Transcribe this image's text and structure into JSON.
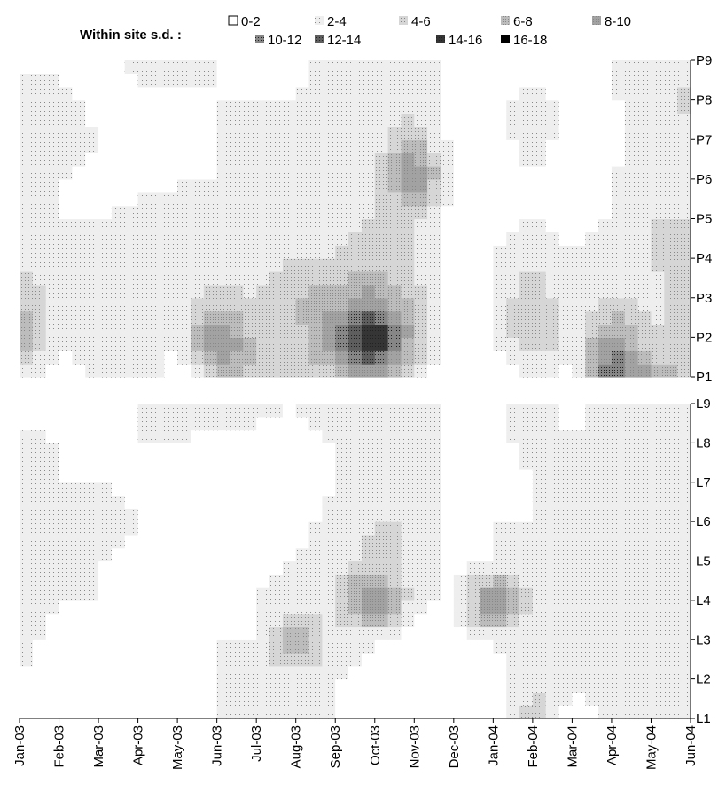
{
  "chart_data": {
    "type": "heatmap",
    "legend": {
      "title": "Within site s.d. :",
      "entries": [
        {
          "label": "0-2",
          "color": "#ffffff"
        },
        {
          "label": "2-4",
          "color": "#eeeeee"
        },
        {
          "label": "4-6",
          "color": "#d6d6d6"
        },
        {
          "label": "6-8",
          "color": "#bcbcbc"
        },
        {
          "label": "8-10",
          "color": "#a2a2a2"
        },
        {
          "label": "10-12",
          "color": "#868686"
        },
        {
          "label": "12-14",
          "color": "#5e5e5e"
        },
        {
          "label": "14-16",
          "color": "#353535"
        },
        {
          "label": "16-18",
          "color": "#000000"
        }
      ]
    },
    "x": [
      "Jan-03",
      "Feb-03",
      "Mar-03",
      "Apr-03",
      "May-03",
      "Jun-03",
      "Jul-03",
      "Aug-03",
      "Sep-03",
      "Oct-03",
      "Nov-03",
      "Dec-03",
      "Jan-04",
      "Feb-04",
      "Mar-04",
      "Apr-04",
      "May-04",
      "Jun-04"
    ],
    "panels": [
      {
        "name": "P",
        "y": [
          "P1",
          "P2",
          "P3",
          "P4",
          "P5",
          "P6",
          "P7",
          "P8",
          "P9"
        ],
        "z": [
          [
            3,
            1,
            2,
            4,
            1,
            5,
            6,
            4,
            5,
            9,
            3,
            0,
            1,
            2,
            1,
            13,
            8,
            5
          ],
          [
            8,
            2,
            4,
            4,
            2,
            12,
            5,
            5,
            10,
            17,
            7,
            1,
            2,
            6,
            3,
            9,
            4,
            6
          ],
          [
            6,
            3,
            3,
            3,
            3,
            5,
            4,
            6,
            7,
            9,
            5,
            1,
            2,
            6,
            2,
            4,
            3,
            5
          ],
          [
            4,
            2,
            3,
            3,
            2,
            3,
            3,
            4,
            4,
            5,
            4,
            1,
            2,
            3,
            2,
            3,
            4,
            5
          ],
          [
            2,
            2,
            2,
            3,
            2,
            3,
            4,
            3,
            3,
            4,
            4,
            1,
            1,
            2,
            1,
            2,
            4,
            4
          ],
          [
            2,
            2,
            1,
            1,
            2,
            2,
            2,
            2,
            3,
            3,
            12,
            1,
            1,
            2,
            1,
            2,
            4,
            3
          ],
          [
            2,
            3,
            2,
            1,
            1,
            2,
            2,
            2,
            3,
            3,
            6,
            1,
            1,
            3,
            1,
            1,
            3,
            3
          ],
          [
            3,
            3,
            1,
            1,
            1,
            2,
            2,
            2,
            3,
            3,
            3,
            1,
            1,
            3,
            1,
            2,
            2,
            5
          ],
          [
            1,
            1,
            1,
            3,
            3,
            2,
            1,
            1,
            3,
            3,
            3,
            1,
            1,
            1,
            1,
            2,
            2,
            3
          ]
        ]
      },
      {
        "name": "L",
        "y": [
          "L1",
          "L2",
          "L3",
          "L4",
          "L5",
          "L6",
          "L7",
          "L8",
          "L9"
        ],
        "z": [
          [
            2,
            1,
            2,
            1,
            1,
            2,
            3,
            4,
            2,
            1,
            1,
            1,
            1,
            6,
            1,
            2,
            2,
            2
          ],
          [
            2,
            1,
            1,
            1,
            1,
            2,
            3,
            3,
            2,
            1,
            1,
            1,
            1,
            3,
            2,
            4,
            2,
            2
          ],
          [
            3,
            1,
            1,
            1,
            1,
            2,
            2,
            8,
            3,
            2,
            1,
            1,
            2,
            3,
            2,
            3,
            2,
            2
          ],
          [
            3,
            2,
            2,
            1,
            1,
            1,
            2,
            3,
            4,
            12,
            3,
            1,
            12,
            3,
            2,
            4,
            3,
            2
          ],
          [
            2,
            2,
            2,
            1,
            1,
            1,
            1,
            2,
            3,
            5,
            3,
            1,
            2,
            2,
            2,
            3,
            3,
            2
          ],
          [
            2,
            2,
            3,
            2,
            1,
            1,
            1,
            1,
            3,
            4,
            4,
            1,
            2,
            2,
            2,
            3,
            3,
            2
          ],
          [
            3,
            2,
            2,
            1,
            1,
            1,
            1,
            1,
            2,
            3,
            3,
            1,
            1,
            2,
            2,
            3,
            4,
            3
          ],
          [
            3,
            2,
            1,
            2,
            2,
            1,
            1,
            1,
            2,
            3,
            3,
            1,
            1,
            3,
            2,
            3,
            4,
            3
          ],
          [
            1,
            1,
            1,
            2,
            3,
            3,
            3,
            2,
            3,
            3,
            3,
            1,
            1,
            3,
            1,
            3,
            3,
            3
          ]
        ]
      }
    ]
  }
}
